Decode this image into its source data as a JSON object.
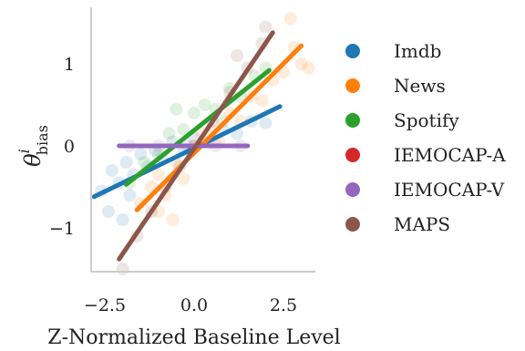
{
  "chart_data": {
    "type": "scatter",
    "title": "",
    "xlabel": "Z-Normalized Baseline Level",
    "ylabel_symbol": "θ",
    "ylabel_superscript": "i",
    "ylabel_subscript": "bias",
    "xlim": [
      -3.4,
      3.4
    ],
    "ylim": [
      -1.6,
      1.7
    ],
    "xticks": [
      -2.5,
      0.0,
      2.5
    ],
    "xtick_labels": [
      "−2.5",
      "0.0",
      "2.5"
    ],
    "yticks": [
      -1,
      0,
      1
    ],
    "ytick_labels": [
      "−1",
      "0",
      "1"
    ],
    "grid": false,
    "legend_position": "right",
    "series": [
      {
        "name": "Imdb",
        "color": "#1f77b4",
        "line": [
          [
            -2.8,
            -0.62
          ],
          [
            2.4,
            0.48
          ]
        ],
        "points": [
          [
            -2.6,
            -0.55
          ],
          [
            -2.3,
            -0.3
          ],
          [
            -2.1,
            -0.45
          ],
          [
            -1.9,
            -0.2
          ],
          [
            -1.7,
            -0.35
          ],
          [
            -1.5,
            -0.1
          ],
          [
            -1.3,
            -0.25
          ],
          [
            -1.1,
            -0.05
          ],
          [
            -0.9,
            -0.15
          ],
          [
            -0.6,
            0.05
          ],
          [
            -0.3,
            -0.05
          ],
          [
            0.0,
            0.1
          ],
          [
            0.4,
            0.05
          ],
          [
            0.8,
            0.2
          ],
          [
            1.2,
            0.15
          ],
          [
            1.6,
            0.3
          ],
          [
            2.0,
            0.28
          ],
          [
            -2.4,
            -0.8
          ],
          [
            -2.0,
            -0.9
          ],
          [
            -1.8,
            -0.6
          ]
        ]
      },
      {
        "name": "News",
        "color": "#ff7f0e",
        "line": [
          [
            -1.6,
            -0.78
          ],
          [
            3.0,
            1.22
          ]
        ],
        "points": [
          [
            -1.5,
            -0.7
          ],
          [
            -1.2,
            -0.5
          ],
          [
            -1.0,
            -0.35
          ],
          [
            -0.8,
            -0.6
          ],
          [
            -0.5,
            -0.2
          ],
          [
            -0.3,
            -0.4
          ],
          [
            0.0,
            0.0
          ],
          [
            0.2,
            0.15
          ],
          [
            0.5,
            0.2
          ],
          [
            0.7,
            0.05
          ],
          [
            1.0,
            0.4
          ],
          [
            1.3,
            0.3
          ],
          [
            1.6,
            0.6
          ],
          [
            1.9,
            0.55
          ],
          [
            2.2,
            0.8
          ],
          [
            2.5,
            0.9
          ],
          [
            2.8,
            1.2
          ],
          [
            3.0,
            1.0
          ],
          [
            2.7,
            1.55
          ],
          [
            3.2,
            0.95
          ],
          [
            -0.6,
            -0.9
          ],
          [
            -1.0,
            -0.8
          ]
        ]
      },
      {
        "name": "Spotify",
        "color": "#2ca02c",
        "line": [
          [
            -1.9,
            -0.47
          ],
          [
            2.1,
            0.92
          ]
        ],
        "points": [
          [
            -1.8,
            -0.45
          ],
          [
            -1.4,
            -0.2
          ],
          [
            -1.0,
            -0.1
          ],
          [
            -0.7,
            0.15
          ],
          [
            -0.3,
            0.2
          ],
          [
            0.0,
            0.4
          ],
          [
            0.3,
            0.5
          ],
          [
            0.6,
            0.45
          ],
          [
            1.0,
            0.7
          ],
          [
            1.3,
            0.6
          ],
          [
            1.7,
            0.85
          ],
          [
            2.0,
            0.95
          ],
          [
            -0.5,
            0.45
          ],
          [
            0.8,
            0.3
          ]
        ]
      },
      {
        "name": "IEMOCAP-A",
        "color": "#d62728",
        "line": [],
        "points": []
      },
      {
        "name": "IEMOCAP-V",
        "color": "#9467bd",
        "line": [
          [
            -2.1,
            0.0
          ],
          [
            1.5,
            0.0
          ]
        ],
        "points": [
          [
            -1.8,
            0.0
          ],
          [
            -1.0,
            0.0
          ],
          [
            -0.2,
            0.0
          ],
          [
            0.6,
            0.0
          ],
          [
            1.3,
            0.0
          ]
        ]
      },
      {
        "name": "MAPS",
        "color": "#8c564b",
        "line": [
          [
            -2.1,
            -1.38
          ],
          [
            2.2,
            1.38
          ]
        ],
        "points": [
          [
            -2.0,
            -1.5
          ],
          [
            -1.6,
            -1.1
          ],
          [
            -1.2,
            -0.8
          ],
          [
            -0.8,
            -0.5
          ],
          [
            -0.4,
            -0.25
          ],
          [
            0.0,
            0.0
          ],
          [
            0.5,
            0.3
          ],
          [
            1.0,
            0.65
          ],
          [
            1.5,
            0.95
          ],
          [
            1.9,
            1.25
          ],
          [
            2.0,
            1.45
          ],
          [
            1.2,
            1.1
          ]
        ]
      }
    ]
  }
}
